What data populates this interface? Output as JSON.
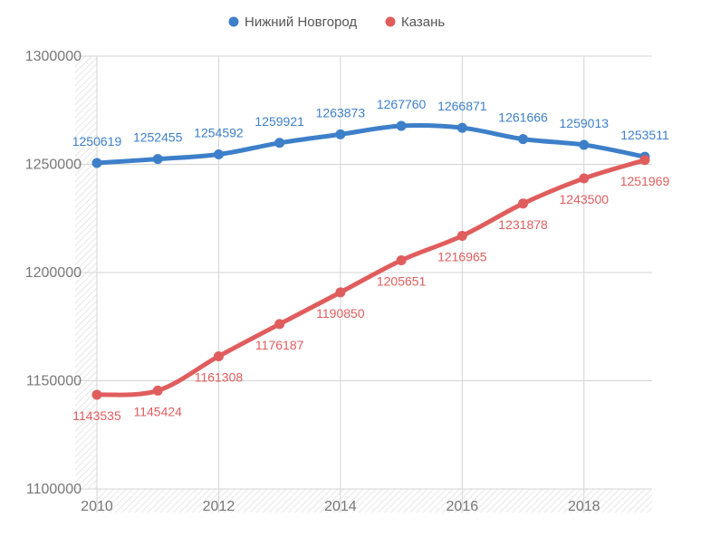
{
  "chart_data": {
    "type": "line",
    "title": "",
    "xlabel": "",
    "ylabel": "",
    "x": [
      2010,
      2011,
      2012,
      2013,
      2014,
      2015,
      2016,
      2017,
      2018,
      2019
    ],
    "x_ticks": [
      "2010",
      "2012",
      "2014",
      "2016",
      "2018"
    ],
    "y_ticks": [
      "1100000",
      "1150000",
      "1200000",
      "1250000",
      "1300000"
    ],
    "ylim": [
      1100000,
      1300000
    ],
    "grid": true,
    "legend_position": "top-center",
    "smooth": true,
    "series": [
      {
        "name": "Нижний Новгород",
        "color": "#3d7fc9",
        "label_position": "above",
        "values": [
          1250619,
          1252455,
          1254592,
          1259921,
          1263873,
          1267760,
          1266871,
          1261666,
          1259013,
          1253511
        ],
        "labels": [
          "1250619",
          "1252455",
          "1254592",
          "1259921",
          "1263873",
          "1267760",
          "1266871",
          "1261666",
          "1259013",
          "1253511"
        ]
      },
      {
        "name": "Казань",
        "color": "#e05d5d",
        "label_position": "below",
        "values": [
          1143535,
          1145424,
          1161308,
          1176187,
          1190850,
          1205651,
          1216965,
          1231878,
          1243500,
          1251969
        ],
        "labels": [
          "1143535",
          "1145424",
          "1161308",
          "1176187",
          "1190850",
          "1205651",
          "1216965",
          "1231878",
          "1243500",
          "1251969"
        ]
      }
    ]
  }
}
